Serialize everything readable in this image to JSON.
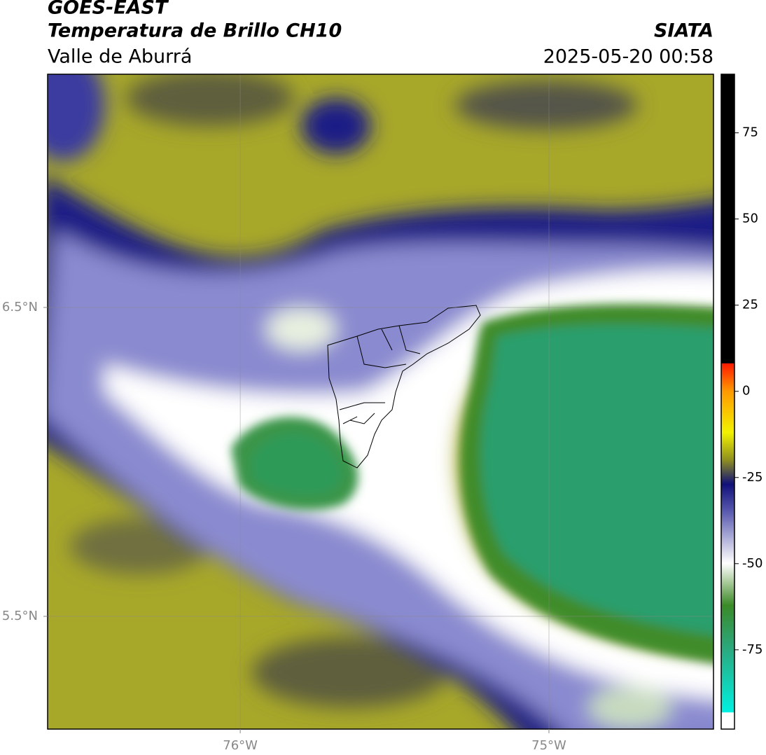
{
  "header": {
    "title": "GOES-EAST",
    "subtitle": "Temperatura de Brillo CH10",
    "region": "Valle de Aburrá",
    "agency": "SIATA",
    "datetime": "2025-05-20 00:58"
  },
  "chart_data": {
    "type": "map",
    "xlim": [
      -76.624,
      -74.467
    ],
    "ylim": [
      5.135,
      7.255
    ],
    "xticks": [
      {
        "value": -76,
        "label": "76°W"
      },
      {
        "value": -75,
        "label": "75°W"
      }
    ],
    "yticks": [
      {
        "value": 6.5,
        "label": "6.5°N"
      },
      {
        "value": 5.5,
        "label": "5.5°N"
      }
    ],
    "grid": true,
    "colorbar": {
      "lim": [
        -98,
        92
      ],
      "ticks": [
        -75,
        -50,
        -25,
        0,
        25,
        50,
        75
      ]
    }
  }
}
